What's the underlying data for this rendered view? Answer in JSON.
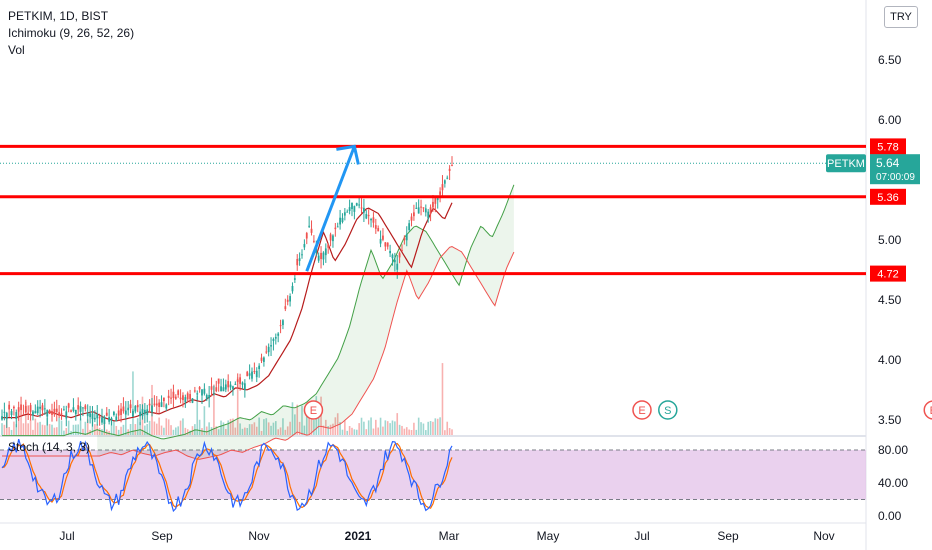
{
  "legend": {
    "symbol_line": "PETKIM, 1D, BIST",
    "ichimoku": "Ichimoku (9, 26, 52, 26)",
    "volume": "Vol"
  },
  "currency_button": "TRY",
  "stoch_label": "Stoch (14, 3, 3)",
  "price_axis": {
    "ticks": [
      "6.50",
      "6.00",
      "5.00",
      "4.50",
      "4.00",
      "3.50"
    ],
    "tick_values": [
      6.5,
      6.0,
      5.0,
      4.5,
      4.0,
      3.5
    ]
  },
  "stoch_axis": {
    "ticks": [
      "80.00",
      "40.00",
      "0.00"
    ],
    "tick_values": [
      80,
      40,
      0
    ]
  },
  "time_axis": {
    "labels": [
      "Jul",
      "Sep",
      "Nov",
      "2021",
      "Mar",
      "May",
      "Jul",
      "Sep",
      "Nov"
    ],
    "bold": [
      false,
      false,
      false,
      true,
      false,
      false,
      false,
      false,
      false
    ]
  },
  "levels": [
    {
      "value": 5.78,
      "label": "5.78",
      "color": "#ff0000"
    },
    {
      "value": 5.36,
      "label": "5.36",
      "color": "#ff0000"
    },
    {
      "value": 4.72,
      "label": "4.72",
      "color": "#ff0000"
    }
  ],
  "last_price": {
    "symbol": "PETKM",
    "value": 5.64,
    "label": "5.64",
    "countdown": "07:00:09",
    "color": "#26a69a"
  },
  "event_markers": [
    {
      "letter": "E",
      "month_index": 2.55,
      "color": "#ef5350"
    },
    {
      "letter": "E",
      "month_index": 6.0,
      "color": "#ef5350"
    },
    {
      "letter": "S",
      "month_index": 6.3,
      "color": "#26a69a"
    },
    {
      "letter": "E",
      "month_index": 9.15,
      "color": "#ef5350"
    }
  ],
  "arrow": {
    "from_price": 4.74,
    "to_price": 5.78,
    "color": "#2196f3"
  },
  "colors": {
    "up": "#26a69a",
    "down": "#ef5350",
    "conversion": "#2962ff",
    "base": "#b71c1c",
    "span_a": "#43a047",
    "span_b": "#ef5350",
    "stoch_k": "#2962ff",
    "stoch_d": "#ff6d00",
    "stoch_band": "#e1bee7"
  },
  "chart_data": {
    "type": "candlestick",
    "title": "PETKIM, 1D, BIST",
    "y_range": [
      3.45,
      6.75
    ],
    "approx_weekly_closes": [
      3.55,
      3.58,
      3.56,
      3.6,
      3.57,
      3.55,
      3.58,
      3.6,
      3.55,
      3.52,
      3.54,
      3.56,
      3.6,
      3.58,
      3.62,
      3.65,
      3.7,
      3.68,
      3.75,
      3.72,
      3.8,
      3.78,
      3.82,
      3.9,
      4.05,
      4.2,
      4.45,
      4.8,
      5.1,
      4.85,
      5.0,
      5.2,
      5.3,
      5.25,
      5.1,
      4.95,
      4.8,
      5.1,
      5.3,
      5.2,
      5.4,
      5.64
    ]
  }
}
